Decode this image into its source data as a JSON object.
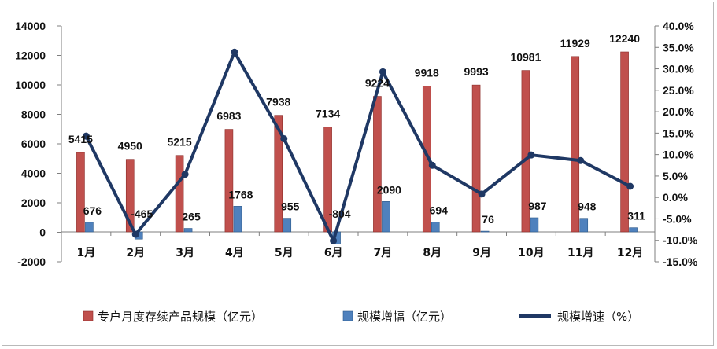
{
  "chart_data": {
    "type": "bar",
    "categories": [
      "1月",
      "2月",
      "3月",
      "4月",
      "5月",
      "6月",
      "7月",
      "8月",
      "9月",
      "10月",
      "11月",
      "12月"
    ],
    "series": [
      {
        "name": "专户月度存续产品规模（亿元）",
        "type": "bar",
        "axis": "left",
        "color": "#c0504d",
        "values": [
          5415,
          4950,
          5215,
          6983,
          7938,
          7134,
          9224,
          9918,
          9993,
          10981,
          11929,
          12240
        ]
      },
      {
        "name": "规模增幅（亿元）",
        "type": "bar",
        "axis": "left",
        "color": "#4f81bd",
        "values": [
          676,
          -465,
          265,
          1768,
          955,
          -804,
          2090,
          694,
          76,
          987,
          948,
          311
        ]
      },
      {
        "name": "规模增速（%）",
        "type": "line",
        "axis": "right",
        "color": "#1f3864",
        "values": [
          14.3,
          -8.6,
          5.4,
          33.9,
          13.7,
          -10.1,
          29.3,
          7.5,
          0.8,
          9.9,
          8.6,
          2.6
        ]
      }
    ],
    "y_left": {
      "ylim": [
        -2000,
        14000
      ],
      "ticks": [
        "-2000",
        "0",
        "2000",
        "4000",
        "6000",
        "8000",
        "10000",
        "12000",
        "14000"
      ]
    },
    "y_right": {
      "ylim": [
        -15,
        40
      ],
      "ticks": [
        "-15.0%",
        "-10.0%",
        "-5.0%",
        "0.0%",
        "5.0%",
        "10.0%",
        "15.0%",
        "20.0%",
        "25.0%",
        "30.0%",
        "35.0%",
        "40.0%"
      ]
    },
    "grid": false,
    "legend_position": "bottom"
  }
}
